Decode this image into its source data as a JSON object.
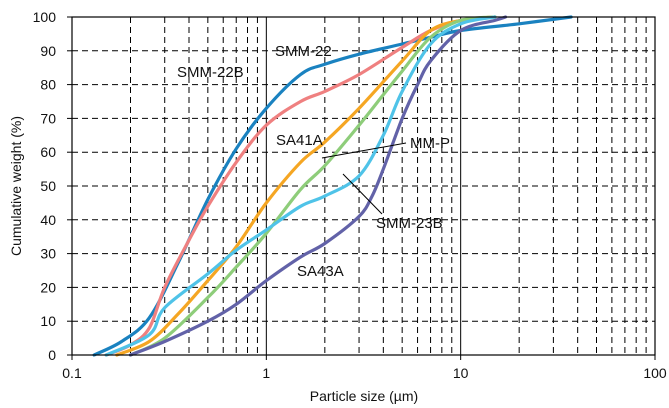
{
  "chart_data": {
    "type": "line",
    "xscale": "log",
    "xlim": [
      0.1,
      100
    ],
    "ylim": [
      0,
      100
    ],
    "xlabel": "Particle size (µm)",
    "ylabel": "Cumulative weight (%)",
    "x_ticks": [
      "0.1",
      "1",
      "10",
      "100"
    ],
    "y_ticks": [
      "0",
      "10",
      "20",
      "30",
      "40",
      "50",
      "60",
      "70",
      "80",
      "90",
      "100"
    ],
    "grid": true,
    "series": [
      {
        "name": "SMM-22",
        "color": "#1a82c0",
        "x": [
          0.13,
          0.18,
          0.25,
          0.35,
          0.5,
          0.7,
          1.0,
          1.5,
          2.0,
          3.0,
          5.0,
          7.0,
          10.0,
          20.0,
          37.0
        ],
        "y": [
          0,
          4,
          11,
          27,
          46,
          61,
          73,
          83,
          86,
          89,
          92,
          94,
          96,
          98,
          100
        ]
      },
      {
        "name": "SMM-22B",
        "color": "#ef8080",
        "x": [
          0.15,
          0.2,
          0.25,
          0.3,
          0.4,
          0.5,
          0.7,
          1.0,
          1.5,
          2.0,
          3.0,
          5.0,
          7.0,
          10.0,
          15.0
        ],
        "y": [
          0,
          3,
          8,
          20,
          34,
          44,
          57,
          68,
          75,
          78,
          83,
          91,
          96,
          99,
          100
        ]
      },
      {
        "name": "SA41A",
        "color": "#f5a623",
        "x": [
          0.17,
          0.25,
          0.35,
          0.5,
          0.7,
          1.0,
          1.5,
          2.0,
          3.0,
          5.0,
          7.0,
          10.0,
          15.0
        ],
        "y": [
          0,
          4,
          12,
          22,
          32,
          45,
          57,
          63,
          73,
          87,
          96,
          99,
          100
        ]
      },
      {
        "name": "MM-P",
        "color": "#8ecd7a",
        "x": [
          0.2,
          0.3,
          0.5,
          0.7,
          1.0,
          1.5,
          2.0,
          3.0,
          4.0,
          5.0,
          7.0,
          10.0,
          15.0
        ],
        "y": [
          0,
          5,
          17,
          26,
          36,
          49,
          56,
          68,
          77,
          84,
          94,
          99,
          100
        ]
      },
      {
        "name": "SMM-23B",
        "color": "#4fc3e8",
        "x": [
          0.15,
          0.25,
          0.3,
          0.5,
          0.7,
          1.0,
          1.5,
          2.0,
          3.0,
          4.0,
          5.0,
          7.0,
          10.0,
          15.0
        ],
        "y": [
          0,
          6,
          14,
          24,
          31,
          37,
          44,
          47,
          53,
          65,
          78,
          92,
          98,
          100
        ]
      },
      {
        "name": "SA43A",
        "color": "#6262a8",
        "x": [
          0.2,
          0.3,
          0.5,
          0.7,
          1.0,
          1.5,
          2.0,
          3.0,
          3.5,
          4.0,
          5.0,
          6.0,
          7.0,
          10.0,
          15.0,
          17.0
        ],
        "y": [
          0,
          4,
          10,
          15,
          22,
          29,
          33,
          41,
          47,
          55,
          70,
          80,
          87,
          96,
          99,
          100
        ]
      }
    ],
    "labels": [
      {
        "text": "SMM-22",
        "series": "SMM-22"
      },
      {
        "text": "SMM-22B",
        "series": "SMM-22B"
      },
      {
        "text": "SA41A",
        "series": "SA41A"
      },
      {
        "text": "MM-P",
        "series": "MM-P"
      },
      {
        "text": "SMM-23B",
        "series": "SMM-23B"
      },
      {
        "text": "SA43A",
        "series": "SA43A"
      }
    ]
  }
}
